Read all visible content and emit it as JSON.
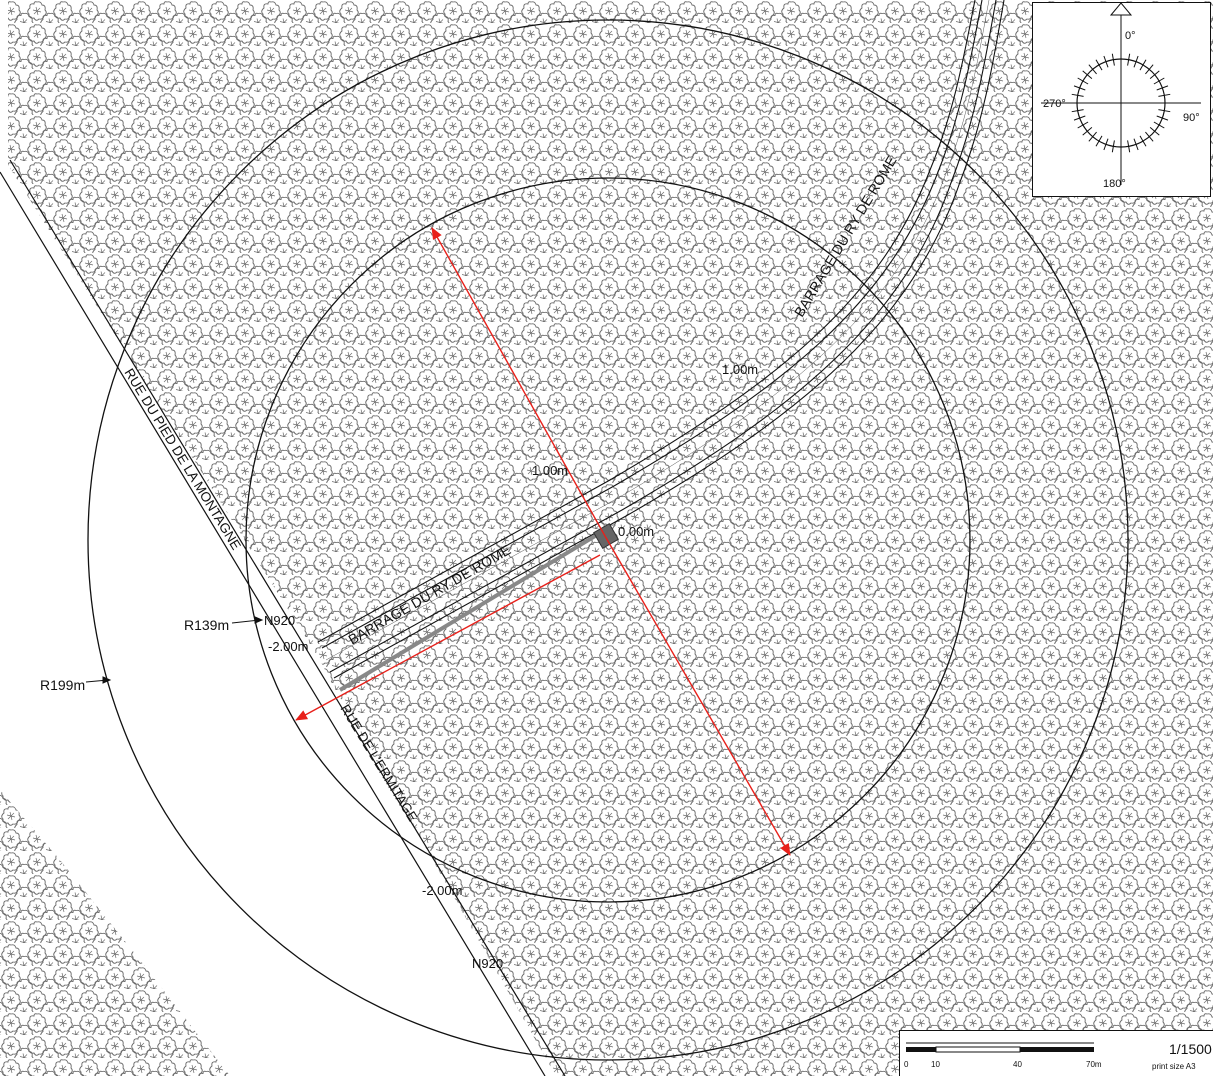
{
  "map": {
    "roads": {
      "barrage_upper": "BARRAGE DU RY DE ROME",
      "barrage_lower": "BARRAGE DU RY DE ROME",
      "rue_pied": "RUE DU PIED DE LA MONTAGNE",
      "rue_ermitage": "RUE DE L'ERMITAGE",
      "n920_a": "N920",
      "n920_b": "N920"
    },
    "elevations": {
      "plus_one_upper": "1.00m",
      "plus_one_center": "1.00m",
      "zero": "0.00m",
      "minus_two_left": "-2.00m",
      "minus_two_bottom": "-2.00m"
    },
    "radii": {
      "inner": "R139m",
      "outer": "R199m"
    },
    "colors": {
      "arrows": "#e8201a",
      "lines": "#111111",
      "trees": "#666666"
    }
  },
  "compass": {
    "north": "0°",
    "east": "90°",
    "south": "180°",
    "west": "270°",
    "icon": "compass-rose-icon"
  },
  "scale": {
    "ratio": "1/1500",
    "print_size": "print size A3",
    "tick_0": "0",
    "tick_10": "10",
    "tick_40": "40",
    "tick_70": "70m"
  }
}
